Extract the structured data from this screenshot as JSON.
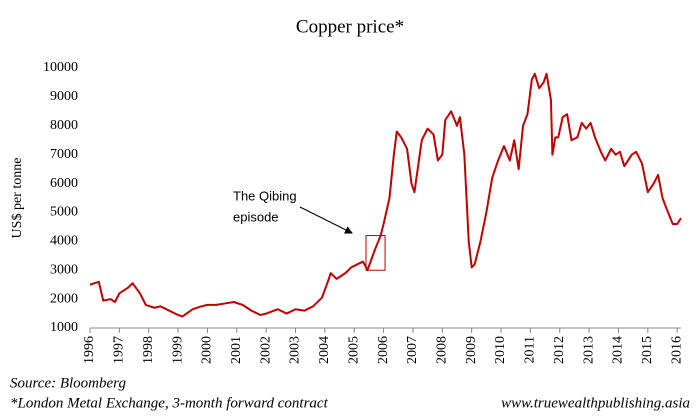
{
  "chart_data": {
    "type": "line",
    "title": "Copper price*",
    "y_label": "US$ per tonne",
    "source": "Source: Bloomberg",
    "footnote": "*London Metal Exchange, 3-month forward contract",
    "website": "www.truewealthpublishing.asia",
    "annotation": {
      "lines": [
        "The Qibing",
        "episode"
      ],
      "x": [
        2005.4,
        2006.05
      ],
      "y": [
        3000,
        4200
      ]
    },
    "x": [
      1996.0,
      1996.3,
      1996.45,
      1996.7,
      1996.85,
      1997.0,
      1997.3,
      1997.45,
      1997.7,
      1997.9,
      1998.2,
      1998.4,
      1998.7,
      1999.0,
      1999.15,
      1999.5,
      1999.8,
      2000.0,
      2000.3,
      2000.6,
      2000.9,
      2001.2,
      2001.5,
      2001.8,
      2002.0,
      2002.4,
      2002.7,
      2003.0,
      2003.3,
      2003.6,
      2003.9,
      2004.1,
      2004.2,
      2004.4,
      2004.7,
      2004.9,
      2005.1,
      2005.3,
      2005.45,
      2005.7,
      2005.9,
      2006.0,
      2006.2,
      2006.35,
      2006.45,
      2006.6,
      2006.8,
      2006.95,
      2007.05,
      2007.3,
      2007.5,
      2007.7,
      2007.85,
      2008.0,
      2008.1,
      2008.3,
      2008.5,
      2008.6,
      2008.75,
      2008.9,
      2009.0,
      2009.1,
      2009.3,
      2009.5,
      2009.7,
      2009.9,
      2010.1,
      2010.3,
      2010.45,
      2010.6,
      2010.75,
      2010.9,
      2011.05,
      2011.15,
      2011.3,
      2011.45,
      2011.55,
      2011.7,
      2011.75,
      2011.85,
      2011.95,
      2012.1,
      2012.25,
      2012.4,
      2012.6,
      2012.75,
      2012.9,
      2013.05,
      2013.2,
      2013.4,
      2013.55,
      2013.75,
      2013.9,
      2014.05,
      2014.2,
      2014.45,
      2014.6,
      2014.8,
      2015.0,
      2015.2,
      2015.35,
      2015.5,
      2015.65,
      2015.85,
      2016.0,
      2016.13
    ],
    "series": [
      {
        "name": "Copper price",
        "color": "#c00000",
        "values": [
          2500,
          2600,
          1950,
          2000,
          1900,
          2200,
          2400,
          2550,
          2200,
          1800,
          1700,
          1750,
          1600,
          1450,
          1400,
          1650,
          1750,
          1800,
          1800,
          1850,
          1900,
          1800,
          1600,
          1450,
          1500,
          1650,
          1500,
          1650,
          1600,
          1750,
          2050,
          2600,
          2900,
          2700,
          2900,
          3100,
          3200,
          3300,
          3000,
          3700,
          4200,
          4600,
          5500,
          7000,
          7800,
          7600,
          7200,
          6000,
          5700,
          7500,
          7900,
          7700,
          6800,
          7000,
          8200,
          8500,
          8000,
          8300,
          7000,
          4000,
          3100,
          3200,
          4000,
          5000,
          6200,
          6800,
          7300,
          6800,
          7500,
          6500,
          8000,
          8400,
          9600,
          9800,
          9300,
          9500,
          9800,
          8900,
          7000,
          7600,
          7600,
          8300,
          8400,
          7500,
          7600,
          8100,
          7900,
          8100,
          7600,
          7100,
          6800,
          7200,
          7000,
          7100,
          6600,
          7000,
          7100,
          6700,
          5700,
          6000,
          6300,
          5500,
          5100,
          4600,
          4600,
          4800
        ]
      }
    ],
    "xlim": [
      1996,
      2016.13
    ],
    "xticks": [
      1996,
      1997,
      1998,
      1999,
      2000,
      2001,
      2002,
      2003,
      2004,
      2005,
      2006,
      2007,
      2008,
      2009,
      2010,
      2011,
      2012,
      2013,
      2014,
      2015,
      2016
    ],
    "ylim": [
      1000,
      10000
    ],
    "yticks": [
      1000,
      2000,
      3000,
      4000,
      5000,
      6000,
      7000,
      8000,
      9000,
      10000
    ],
    "grid": false
  }
}
